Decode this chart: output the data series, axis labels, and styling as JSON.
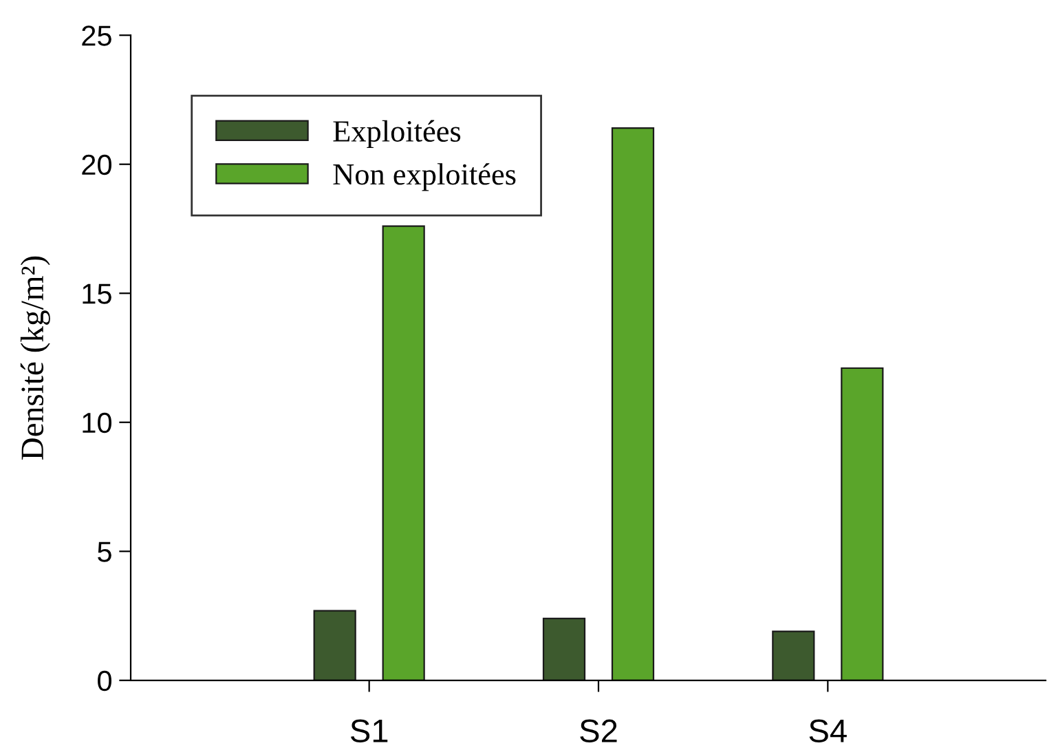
{
  "chart_data": {
    "type": "bar",
    "ylabel": "Densité (kg/m²)",
    "categories": [
      "S1",
      "S2",
      "S4"
    ],
    "series": [
      {
        "name": "Exploitées",
        "color": "#3d5a2e",
        "values": [
          2.7,
          2.4,
          1.9
        ]
      },
      {
        "name": "Non exploitées",
        "color": "#5aa52a",
        "values": [
          17.6,
          21.4,
          12.1
        ]
      }
    ],
    "ylim": [
      0,
      25
    ],
    "yticks": [
      0,
      5,
      10,
      15,
      20,
      25
    ],
    "grid": false,
    "legend": "top left"
  }
}
